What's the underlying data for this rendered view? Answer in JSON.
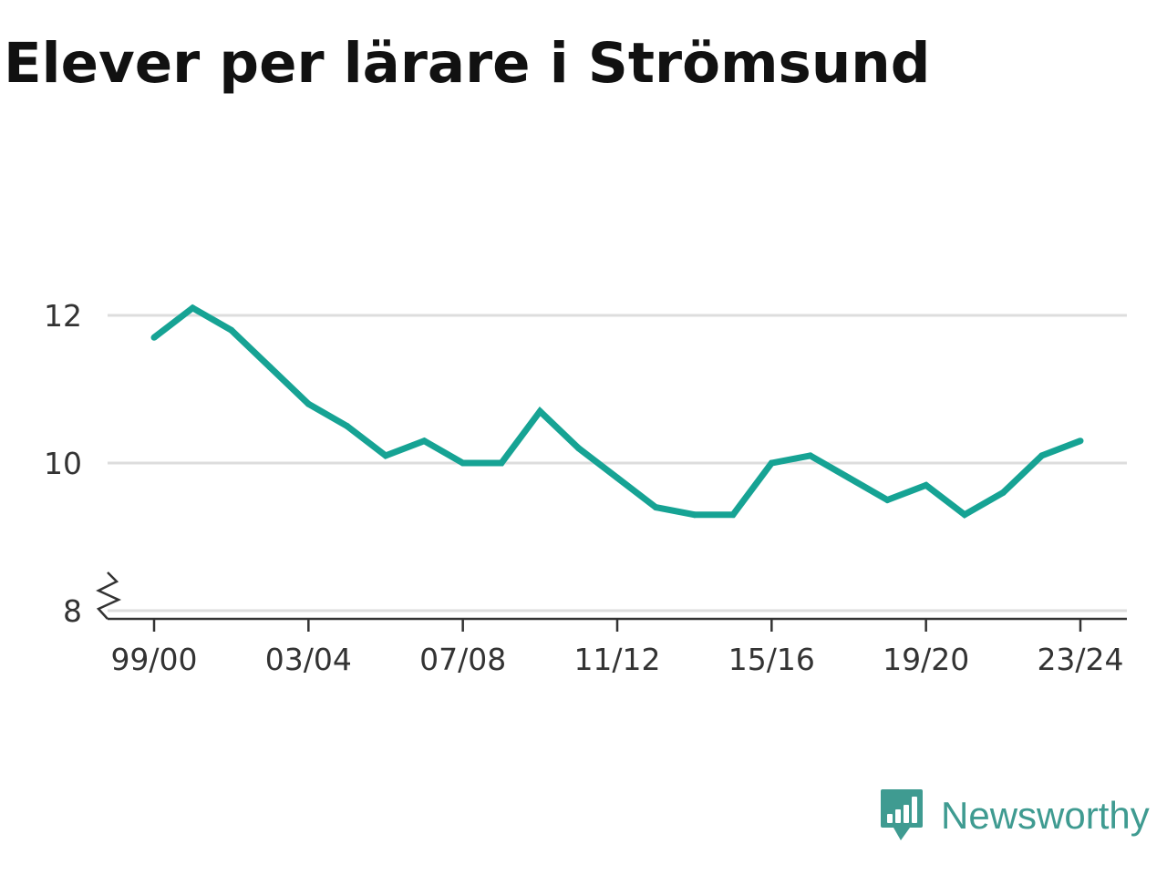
{
  "title": "Elever per lärare i Strömsund",
  "brand": {
    "name": "Newsworthy",
    "icon": "newsworthy-logo-icon",
    "color": "#3f9b91"
  },
  "colors": {
    "line": "#16a394",
    "grid": "#dddddd",
    "axis": "#333333",
    "text": "#333333",
    "title": "#111111"
  },
  "chart_data": {
    "type": "line",
    "title": "Elever per lärare i Strömsund",
    "xlabel": "",
    "ylabel": "",
    "x": [
      "99/00",
      "00/01",
      "01/02",
      "02/03",
      "03/04",
      "04/05",
      "05/06",
      "06/07",
      "07/08",
      "08/09",
      "09/10",
      "10/11",
      "11/12",
      "12/13",
      "13/14",
      "14/15",
      "15/16",
      "16/17",
      "17/18",
      "18/19",
      "19/20",
      "20/21",
      "21/22",
      "22/23",
      "23/24"
    ],
    "x_tick_labels": [
      "99/00",
      "03/04",
      "07/08",
      "11/12",
      "15/16",
      "19/20",
      "23/24"
    ],
    "values": [
      11.7,
      12.1,
      11.8,
      11.3,
      10.8,
      10.5,
      10.1,
      10.3,
      10.0,
      10.0,
      10.7,
      10.2,
      9.8,
      9.4,
      9.3,
      9.3,
      10.0,
      10.1,
      9.8,
      9.5,
      9.7,
      9.3,
      9.6,
      10.1,
      10.3
    ],
    "y_ticks": [
      8,
      10,
      12
    ],
    "ylim": [
      8,
      12.5
    ],
    "axis_break": true,
    "grid": true,
    "legend": "none"
  }
}
